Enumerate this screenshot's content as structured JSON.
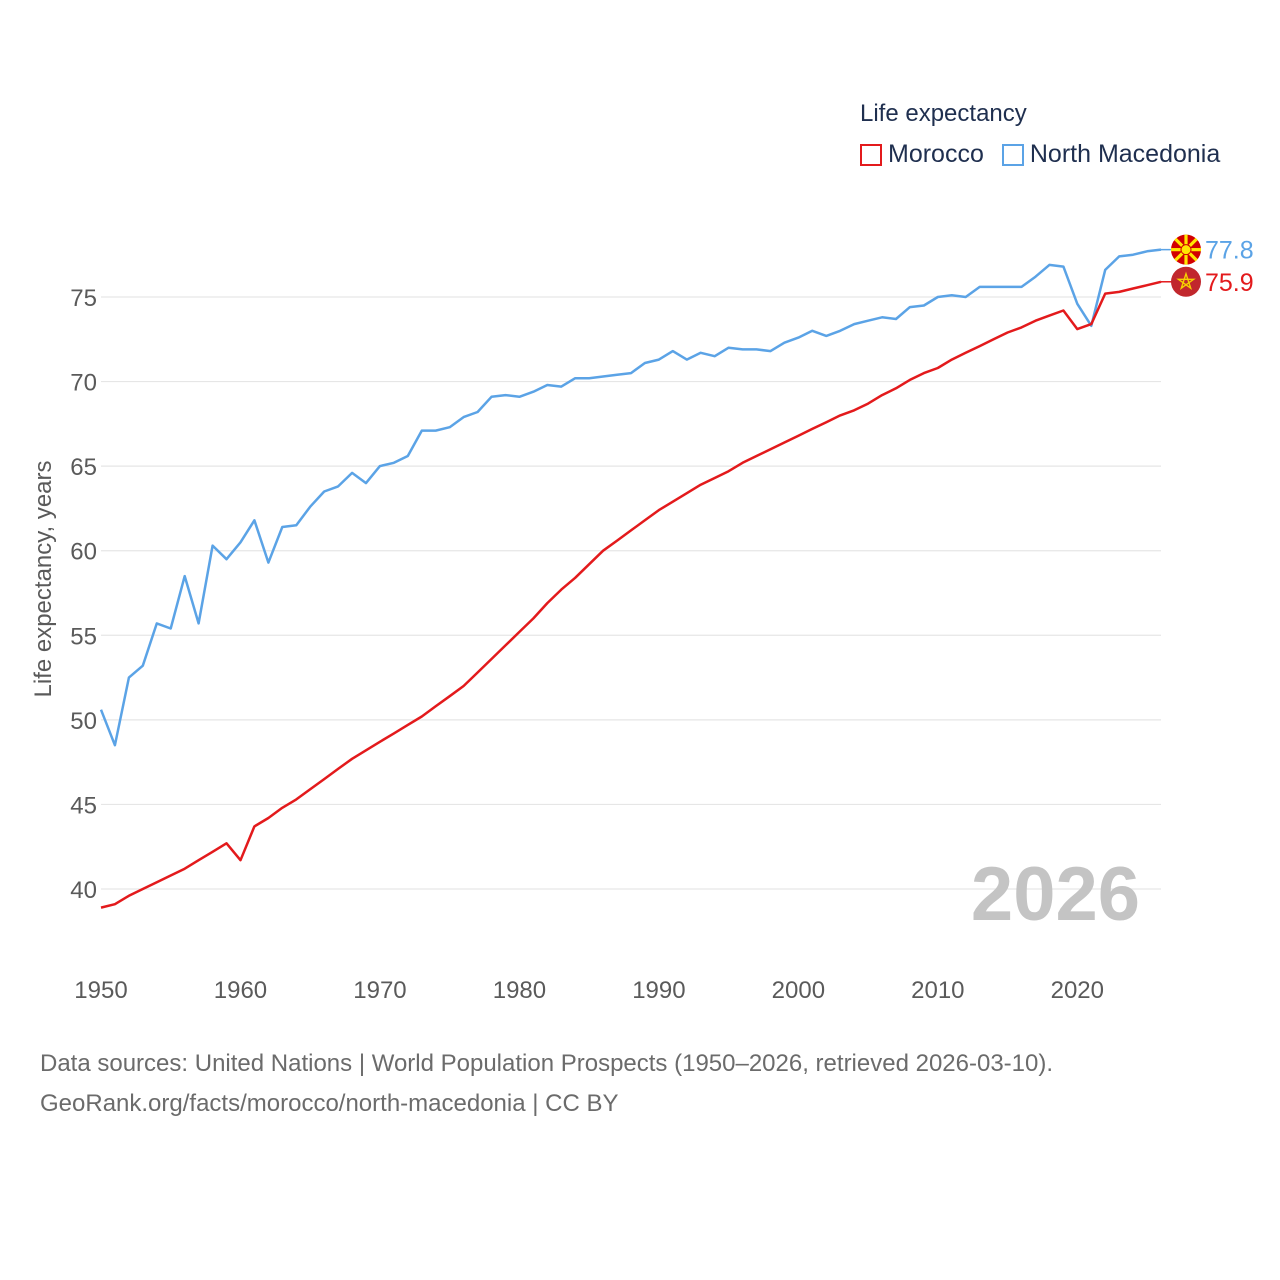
{
  "chart_data": {
    "type": "line",
    "legend_title": "Life expectancy",
    "ylabel": "Life expectancy, years",
    "xlabel": "",
    "xlim": [
      1950,
      2026
    ],
    "ylim": [
      37,
      80
    ],
    "yticks": [
      40,
      45,
      50,
      55,
      60,
      65,
      70,
      75
    ],
    "xticks": [
      1950,
      1960,
      1970,
      1980,
      1990,
      2000,
      2010,
      2020
    ],
    "year_label": "2026",
    "x": [
      1950,
      1951,
      1952,
      1953,
      1954,
      1955,
      1956,
      1957,
      1958,
      1959,
      1960,
      1961,
      1962,
      1963,
      1964,
      1965,
      1966,
      1967,
      1968,
      1969,
      1970,
      1971,
      1972,
      1973,
      1974,
      1975,
      1976,
      1977,
      1978,
      1979,
      1980,
      1981,
      1982,
      1983,
      1984,
      1985,
      1986,
      1987,
      1988,
      1989,
      1990,
      1991,
      1992,
      1993,
      1994,
      1995,
      1996,
      1997,
      1998,
      1999,
      2000,
      2001,
      2002,
      2003,
      2004,
      2005,
      2006,
      2007,
      2008,
      2009,
      2010,
      2011,
      2012,
      2013,
      2014,
      2015,
      2016,
      2017,
      2018,
      2019,
      2020,
      2021,
      2022,
      2023,
      2024,
      2025,
      2026
    ],
    "series": [
      {
        "name": "North Macedonia",
        "color": "#5ba3e6",
        "end_label": "77.8",
        "values": [
          50.6,
          48.5,
          52.5,
          53.2,
          55.7,
          55.4,
          58.5,
          55.7,
          60.3,
          59.5,
          60.5,
          61.8,
          59.3,
          61.4,
          61.5,
          62.6,
          63.5,
          63.8,
          64.6,
          64.0,
          65.0,
          65.2,
          65.6,
          67.1,
          67.1,
          67.3,
          67.9,
          68.2,
          69.1,
          69.2,
          69.1,
          69.4,
          69.8,
          69.7,
          70.2,
          70.2,
          70.3,
          70.4,
          70.5,
          71.1,
          71.3,
          71.8,
          71.3,
          71.7,
          71.5,
          72.0,
          71.9,
          71.9,
          71.8,
          72.3,
          72.6,
          73.0,
          72.7,
          73.0,
          73.4,
          73.6,
          73.8,
          73.7,
          74.4,
          74.5,
          75.0,
          75.1,
          75.0,
          75.6,
          75.6,
          75.6,
          75.6,
          76.2,
          76.9,
          76.8,
          74.6,
          73.3,
          76.6,
          77.4,
          77.5,
          77.7,
          77.8
        ]
      },
      {
        "name": "Morocco",
        "color": "#e31a1c",
        "end_label": "75.9",
        "values": [
          38.9,
          39.1,
          39.6,
          40.0,
          40.4,
          40.8,
          41.2,
          41.7,
          42.2,
          42.7,
          41.7,
          43.7,
          44.2,
          44.8,
          45.3,
          45.9,
          46.5,
          47.1,
          47.7,
          48.2,
          48.7,
          49.2,
          49.7,
          50.2,
          50.8,
          51.4,
          52.0,
          52.8,
          53.6,
          54.4,
          55.2,
          56.0,
          56.9,
          57.7,
          58.4,
          59.2,
          60.0,
          60.6,
          61.2,
          61.8,
          62.4,
          62.9,
          63.4,
          63.9,
          64.3,
          64.7,
          65.2,
          65.6,
          66.0,
          66.4,
          66.8,
          67.2,
          67.6,
          68.0,
          68.3,
          68.7,
          69.2,
          69.6,
          70.1,
          70.5,
          70.8,
          71.3,
          71.7,
          72.1,
          72.5,
          72.9,
          73.2,
          73.6,
          73.9,
          74.2,
          73.1,
          73.4,
          75.2,
          75.3,
          75.5,
          75.7,
          75.9
        ]
      }
    ]
  },
  "legend": {
    "title": "Life expectancy",
    "items": [
      {
        "label": "Morocco",
        "color": "#e31a1c"
      },
      {
        "label": "North Macedonia",
        "color": "#5ba3e6"
      }
    ]
  },
  "footer": {
    "line1": "Data sources: United Nations | World Population Prospects (1950–2026, retrieved 2026-03-10).",
    "line2": "GeoRank.org/facts/morocco/north-macedonia | CC BY"
  },
  "flags": {
    "north_macedonia": {
      "icon": "north-macedonia-flag-icon",
      "bg": "#d20000",
      "sun": "#ffe600"
    },
    "morocco": {
      "icon": "morocco-flag-icon",
      "bg": "#c1272d",
      "star": "#f5d000"
    }
  }
}
